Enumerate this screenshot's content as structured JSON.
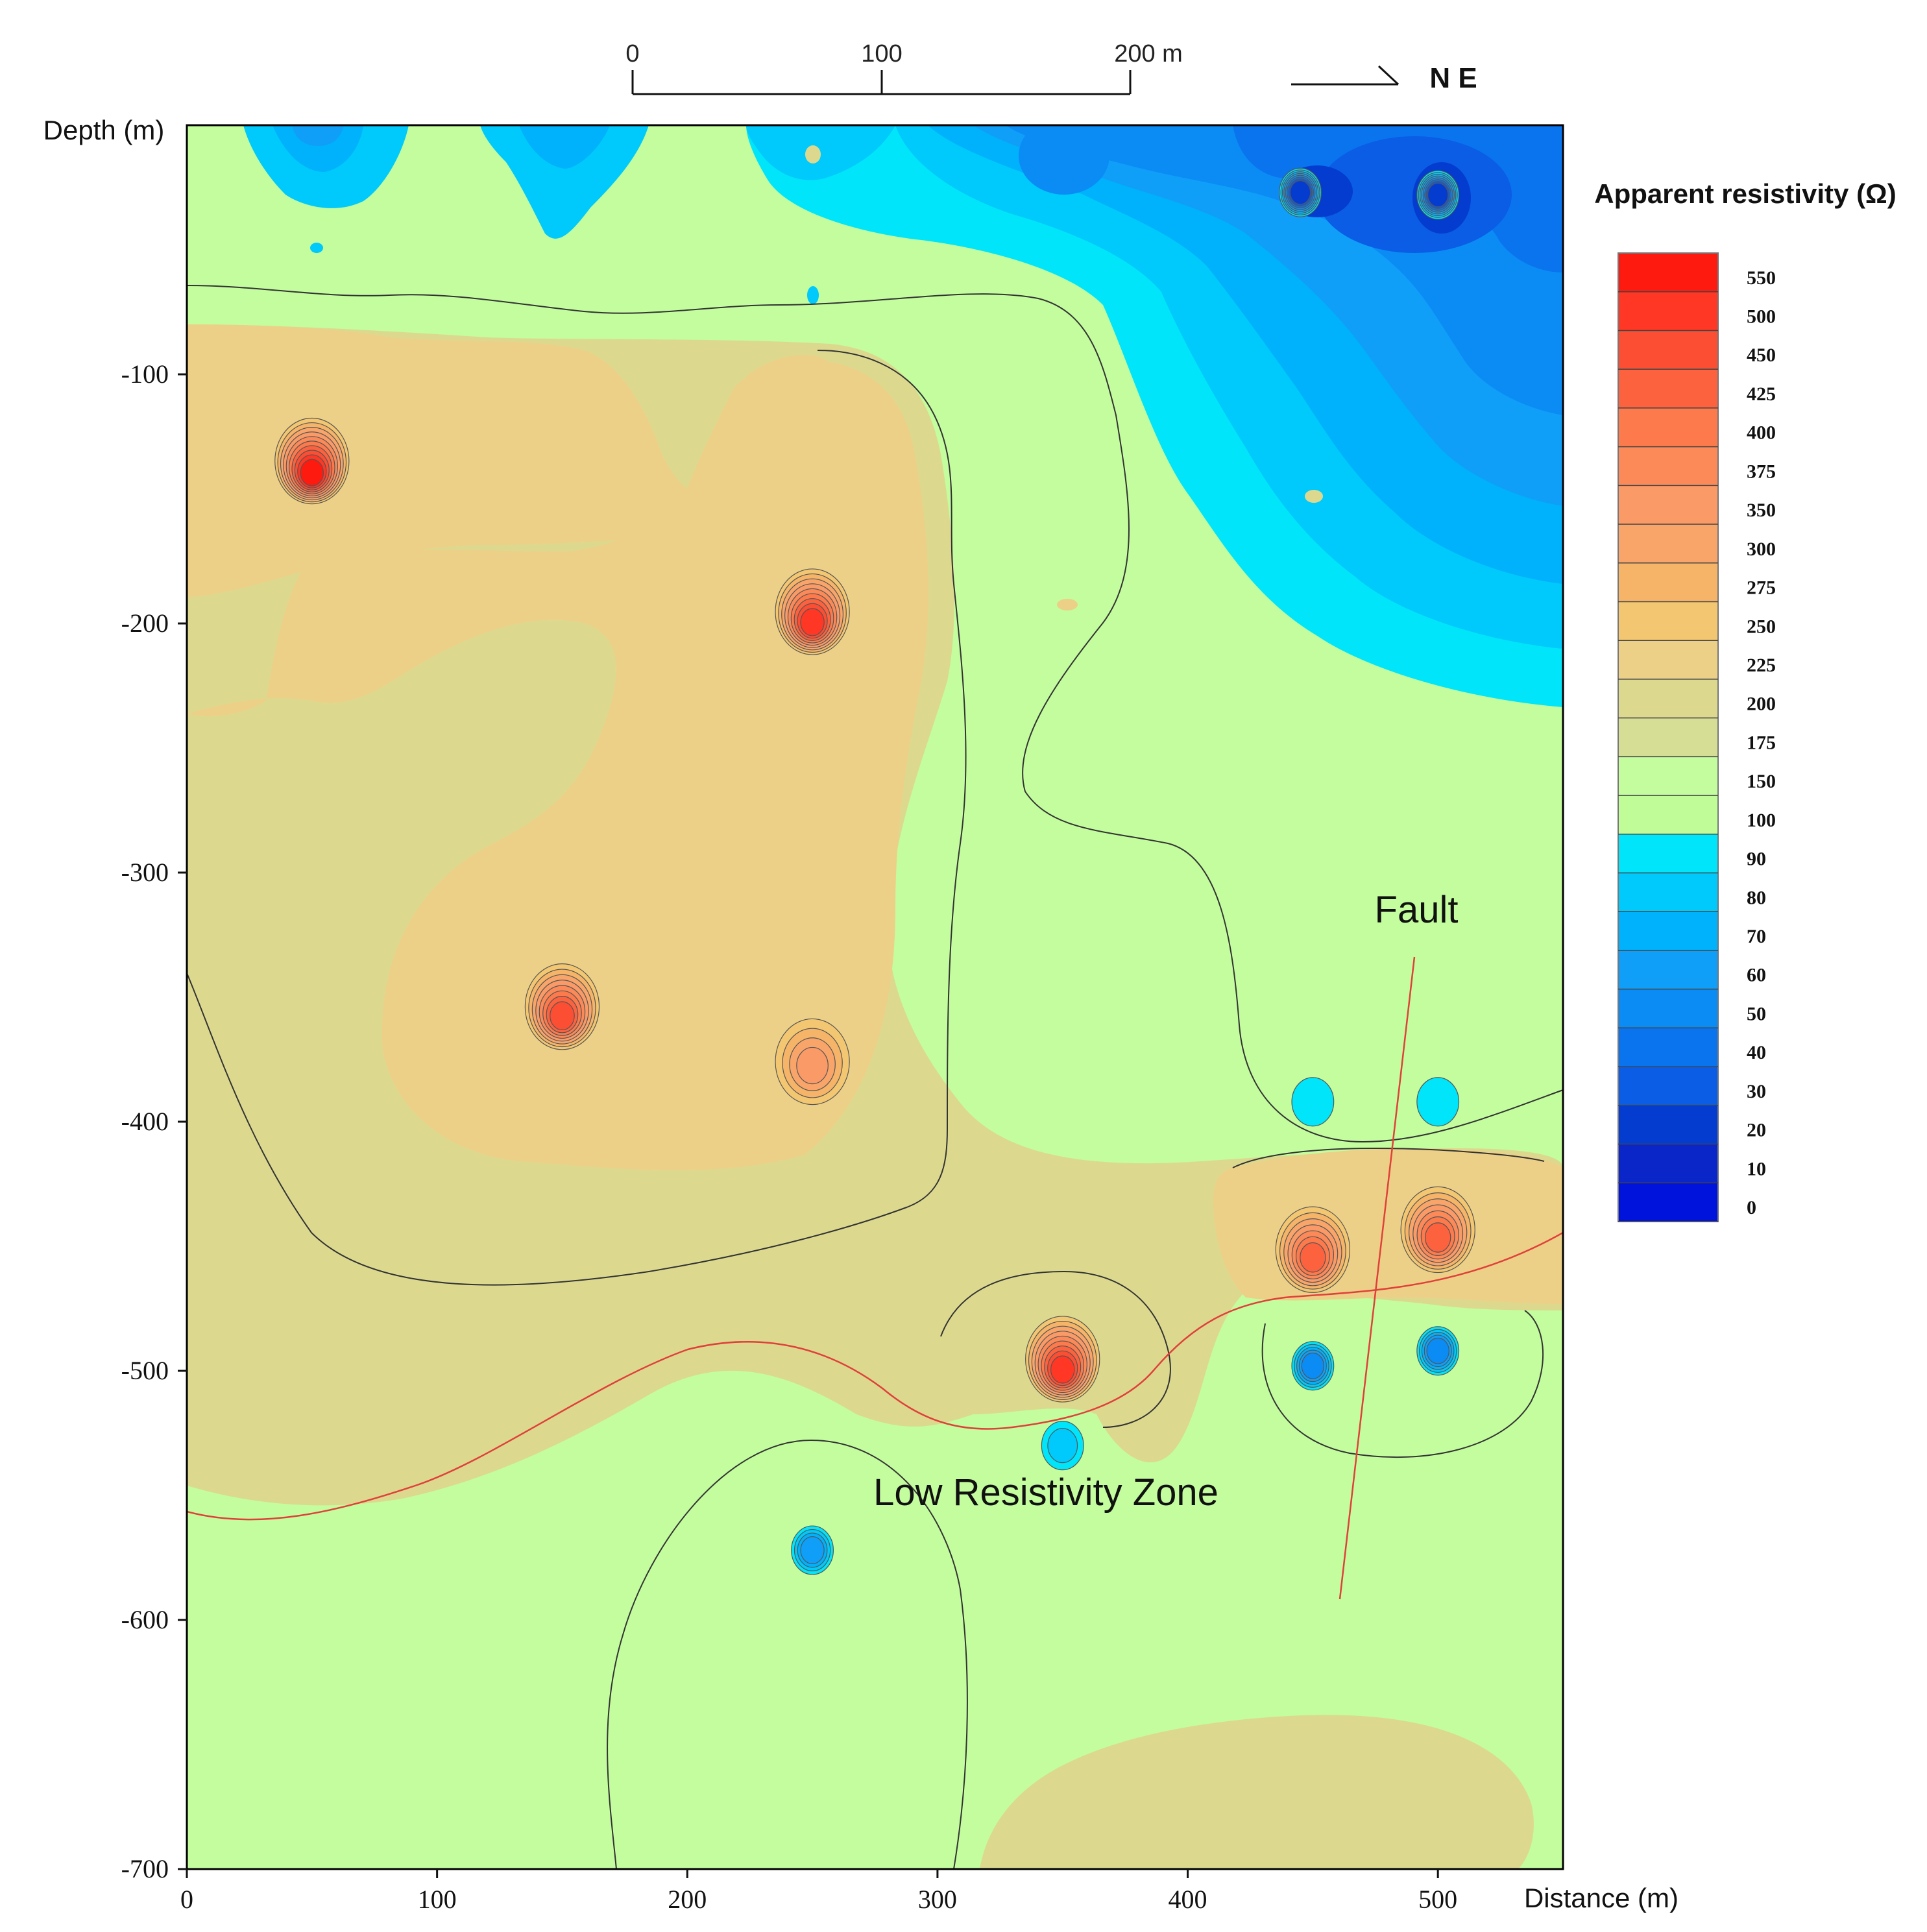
{
  "chart_data": {
    "type": "heatmap",
    "title": "",
    "xlabel": "Distance (m)",
    "ylabel": "Depth (m)",
    "xlim": [
      0,
      550
    ],
    "ylim": [
      -700,
      0
    ],
    "x_ticks": [
      0,
      100,
      200,
      300,
      400,
      500
    ],
    "y_ticks": [
      -100,
      -200,
      -300,
      -400,
      -500,
      -600,
      -700
    ],
    "scale_bar": {
      "ticks": [
        "0",
        "100",
        "200 m"
      ],
      "values": [
        0,
        100,
        200
      ]
    },
    "direction_label": "N E",
    "colorbar": {
      "title": "Apparent resistivity (Ω)",
      "levels": [
        0,
        10,
        20,
        30,
        40,
        50,
        60,
        70,
        80,
        90,
        100,
        150,
        175,
        200,
        225,
        250,
        275,
        300,
        350,
        375,
        400,
        425,
        450,
        500,
        550
      ],
      "labels": [
        "550",
        "500",
        "450",
        "425",
        "400",
        "375",
        "350",
        "300",
        "275",
        "250",
        "225",
        "200",
        "175",
        "150",
        "100",
        "90",
        "80",
        "70",
        "60",
        "50",
        "40",
        "30",
        "20",
        "10",
        "0"
      ],
      "colors": [
        "#ff1a0f",
        "#ff3724",
        "#fc4e32",
        "#fd623f",
        "#fc7a4c",
        "#fc8a58",
        "#f99a67",
        "#f9a56a",
        "#f5b467",
        "#f3c772",
        "#edd087",
        "#dcd98f",
        "#d6de96",
        "#c3fd9e",
        "#c0fd98",
        "#00e5f9",
        "#00c9fc",
        "#00b1fc",
        "#0f9ff8",
        "#0b8cf5",
        "#0a74ee",
        "#0a5de4",
        "#043ccf",
        "#0a25c8",
        "#0013dd"
      ]
    },
    "annotations": [
      {
        "text": "Fault",
        "x": 490,
        "y": -315
      },
      {
        "text": "Low Resistivity Zone",
        "x": 343,
        "y": -553
      }
    ],
    "anomalies": [
      {
        "x": 50,
        "y": -140,
        "value": 550,
        "type": "high"
      },
      {
        "x": 250,
        "y": -200,
        "value": 500,
        "type": "high"
      },
      {
        "x": 150,
        "y": -358,
        "value": 450,
        "type": "high"
      },
      {
        "x": 250,
        "y": -378,
        "value": 350,
        "type": "high"
      },
      {
        "x": 350,
        "y": -500,
        "value": 500,
        "type": "high"
      },
      {
        "x": 450,
        "y": -455,
        "value": 425,
        "type": "high"
      },
      {
        "x": 500,
        "y": -447,
        "value": 425,
        "type": "high"
      },
      {
        "x": 250,
        "y": -572,
        "value": 60,
        "type": "low"
      },
      {
        "x": 450,
        "y": -498,
        "value": 50,
        "type": "low"
      },
      {
        "x": 500,
        "y": -492,
        "value": 50,
        "type": "low"
      },
      {
        "x": 350,
        "y": -530,
        "value": 80,
        "type": "low"
      },
      {
        "x": 450,
        "y": -392,
        "value": 90,
        "type": "low"
      },
      {
        "x": 500,
        "y": -392,
        "value": 90,
        "type": "low"
      },
      {
        "x": 500,
        "y": -28,
        "value": 20,
        "type": "low"
      },
      {
        "x": 445,
        "y": -27,
        "value": 20,
        "type": "low"
      }
    ]
  }
}
